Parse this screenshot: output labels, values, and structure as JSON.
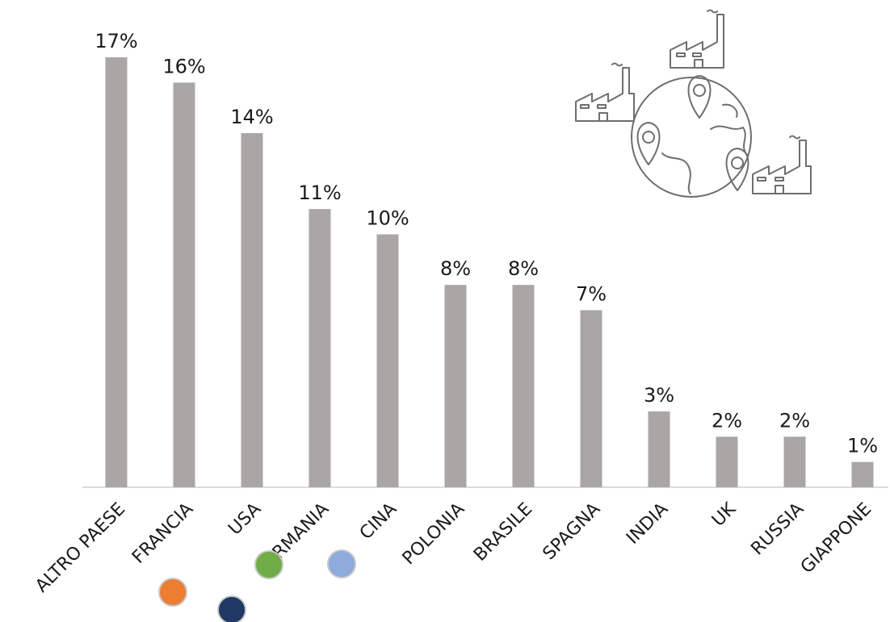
{
  "chart_data": {
    "type": "bar",
    "categories": [
      "ALTRO PAESE",
      "FRANCIA",
      "USA",
      "GERMANIA",
      "CINA",
      "POLONIA",
      "BRASILE",
      "SPAGNA",
      "INDIA",
      "UK",
      "RUSSIA",
      "GIAPPONE"
    ],
    "values": [
      17,
      16,
      14,
      11,
      10,
      8,
      8,
      7,
      3,
      2,
      2,
      1
    ],
    "value_labels": [
      "17%",
      "16%",
      "14%",
      "11%",
      "10%",
      "8%",
      "8%",
      "7%",
      "3%",
      "2%",
      "2%",
      "1%"
    ],
    "unit": "%",
    "bar_color": "#aba6a6",
    "ylim": [
      0,
      17
    ],
    "grid": false,
    "legend": false,
    "markers": [
      {
        "category": "FRANCIA",
        "color": "#ed7d31"
      },
      {
        "category": "USA",
        "color": "#70ad47"
      },
      {
        "category": "GERMANIA",
        "color": "#1f3864"
      },
      {
        "category": "CINA",
        "color": "#8faadc"
      }
    ]
  },
  "illustration": {
    "icon": "globe-with-factories-icon"
  }
}
